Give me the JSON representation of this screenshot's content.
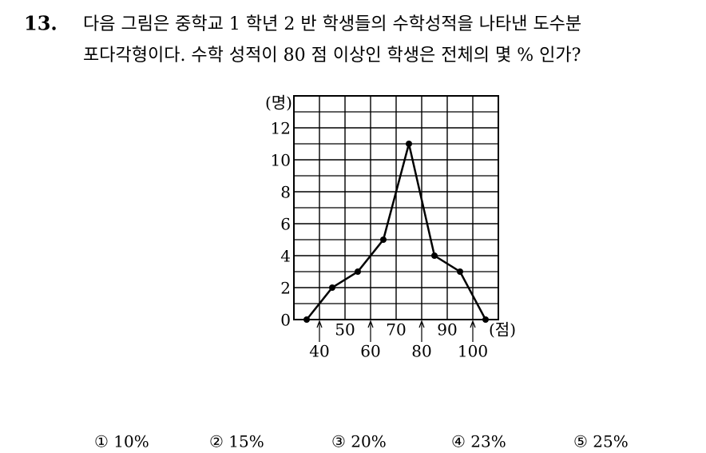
{
  "question": {
    "number": "13.",
    "lines": [
      "다음 그림은 중학교 1 학년 2 반 학생들의 수학성적을 나타낸 도수분",
      "포다각형이다. 수학 성적이 80 점 이상인 학생은 전체의 몇 % 인가?"
    ],
    "options": [
      "① 10%",
      "② 15%",
      "③ 20%",
      "④ 23%",
      "⑤ 25%"
    ]
  },
  "chart_data": {
    "type": "line",
    "x_label": "(점)",
    "y_label": "(명)",
    "x": [
      35,
      45,
      55,
      65,
      75,
      85,
      95,
      105
    ],
    "values": [
      0,
      2,
      3,
      5,
      11,
      4,
      3,
      0
    ],
    "color": "#000000",
    "xlim": [
      30,
      110
    ],
    "xticks": [
      40,
      50,
      60,
      70,
      80,
      90,
      100
    ],
    "ylim": [
      0,
      14
    ],
    "yticks": [
      0,
      2,
      4,
      6,
      8,
      10,
      12
    ],
    "ygrid": [
      1,
      3,
      5,
      7,
      9,
      11,
      13
    ],
    "grid": true
  }
}
